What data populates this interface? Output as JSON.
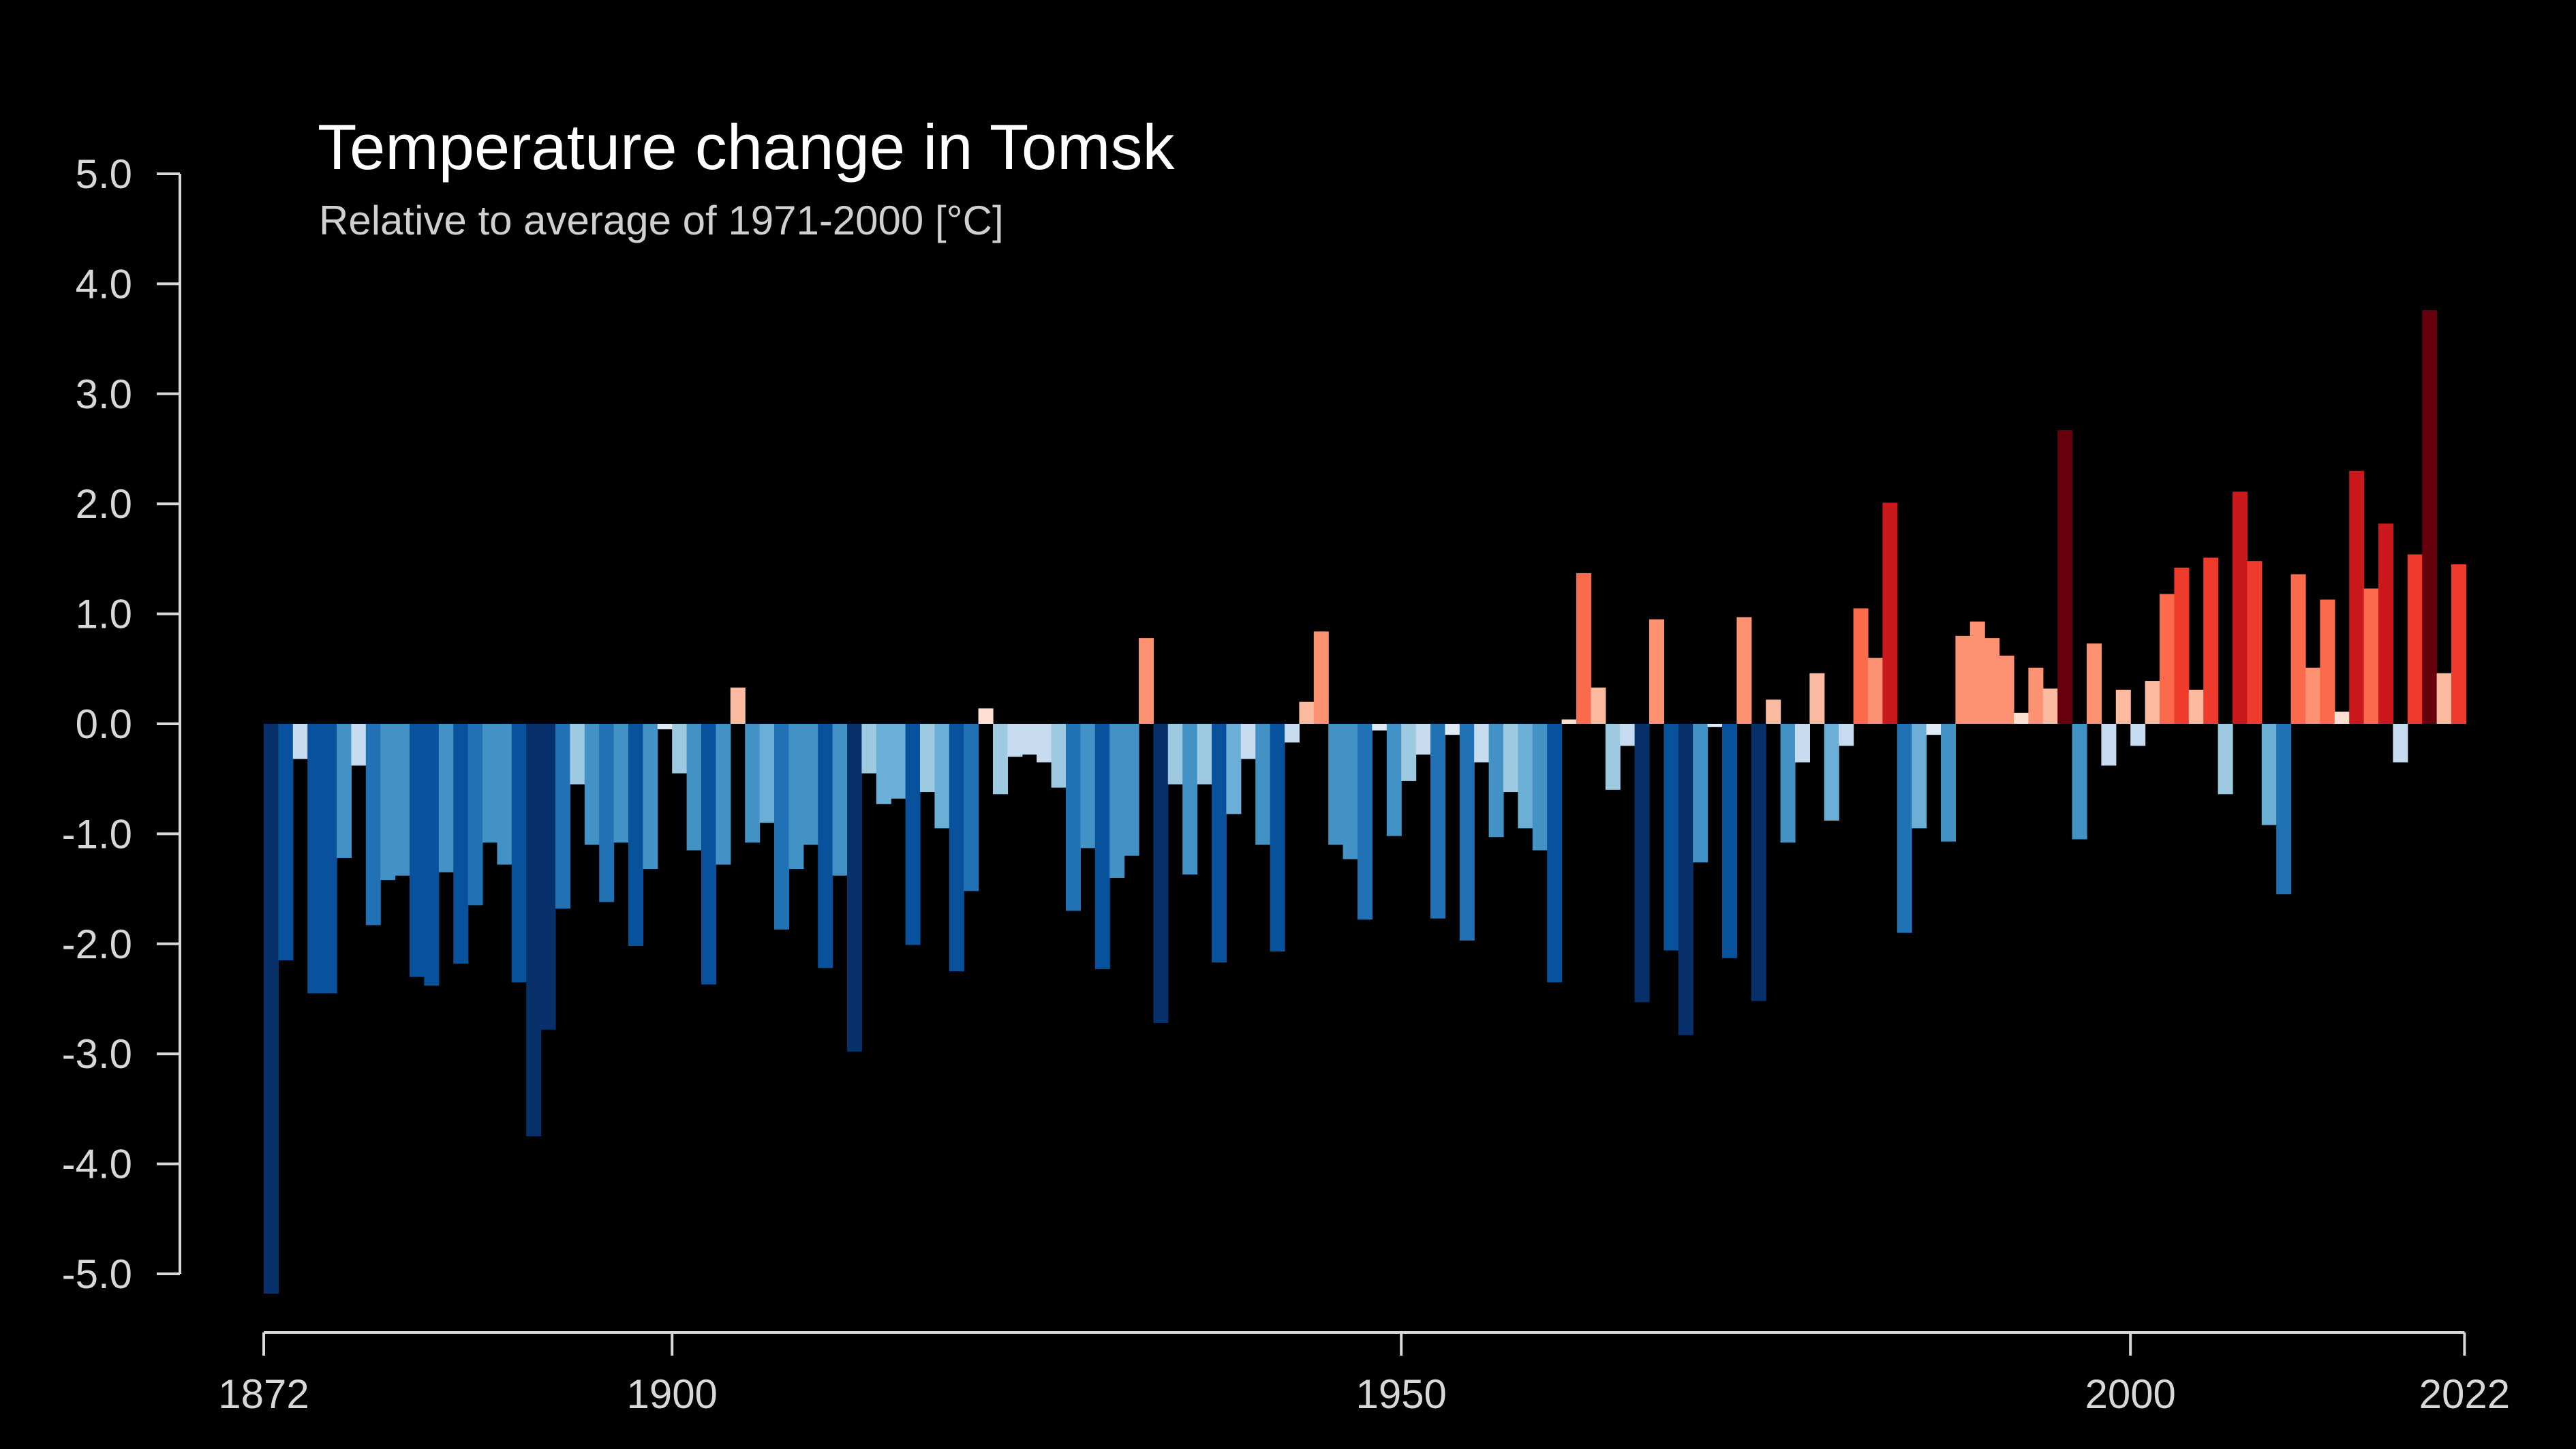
{
  "chart_data": {
    "type": "bar",
    "title": "Temperature change in Tomsk",
    "subtitle": "Relative to average of 1971-2000  [°C]",
    "xlabel": "",
    "ylabel": "",
    "ylim": [
      -5,
      5
    ],
    "xlim": [
      1872,
      2022
    ],
    "grid": false,
    "legend": "none",
    "y_ticks": [
      "5.0",
      "4.0",
      "3.0",
      "2.0",
      "1.0",
      "0.0",
      "-1.0",
      "-2.0",
      "-3.0",
      "-4.0",
      "-5.0"
    ],
    "y_tick_values": [
      5,
      4,
      3,
      2,
      1,
      0,
      -1,
      -2,
      -3,
      -4,
      -5
    ],
    "x_ticks": [
      "1872",
      "1900",
      "1950",
      "2000",
      "2022"
    ],
    "x_tick_values": [
      1872,
      1900,
      1950,
      2000,
      2022
    ],
    "start_year": 1872,
    "years": [
      1872,
      1873,
      1874,
      1875,
      1876,
      1877,
      1878,
      1879,
      1880,
      1881,
      1882,
      1883,
      1884,
      1885,
      1886,
      1887,
      1888,
      1889,
      1890,
      1891,
      1892,
      1893,
      1894,
      1895,
      1896,
      1897,
      1898,
      1899,
      1900,
      1901,
      1902,
      1903,
      1904,
      1905,
      1906,
      1907,
      1908,
      1909,
      1910,
      1911,
      1912,
      1913,
      1914,
      1915,
      1916,
      1917,
      1918,
      1919,
      1920,
      1921,
      1922,
      1923,
      1924,
      1925,
      1926,
      1927,
      1928,
      1929,
      1930,
      1931,
      1932,
      1933,
      1934,
      1935,
      1936,
      1937,
      1938,
      1939,
      1940,
      1941,
      1942,
      1943,
      1944,
      1945,
      1946,
      1947,
      1948,
      1949,
      1950,
      1951,
      1952,
      1953,
      1954,
      1955,
      1956,
      1957,
      1958,
      1959,
      1960,
      1961,
      1962,
      1963,
      1964,
      1965,
      1966,
      1967,
      1968,
      1969,
      1970,
      1971,
      1972,
      1973,
      1974,
      1975,
      1976,
      1977,
      1978,
      1979,
      1980,
      1981,
      1982,
      1983,
      1984,
      1985,
      1986,
      1987,
      1988,
      1989,
      1990,
      1991,
      1992,
      1993,
      1994,
      1995,
      1996,
      1997,
      1998,
      1999,
      2000,
      2001,
      2002,
      2003,
      2004,
      2005,
      2006,
      2007,
      2008,
      2009,
      2010,
      2011,
      2012,
      2013,
      2014,
      2015,
      2016,
      2017,
      2018,
      2019,
      2020,
      2021,
      2022
    ],
    "values": [
      -5.18,
      -2.15,
      -0.32,
      -2.45,
      -2.45,
      -1.22,
      -0.38,
      -1.83,
      -1.42,
      -1.38,
      -2.3,
      -2.38,
      -1.35,
      -2.18,
      -1.65,
      -1.08,
      -1.28,
      -2.35,
      -3.75,
      -2.78,
      -1.68,
      -0.55,
      -1.1,
      -1.62,
      -1.08,
      -2.02,
      -1.32,
      -0.05,
      -0.45,
      -1.15,
      -2.37,
      -1.28,
      0.33,
      -1.08,
      -0.9,
      -1.87,
      -1.32,
      -1.1,
      -2.22,
      -1.38,
      -2.98,
      -0.45,
      -0.73,
      -0.68,
      -2.01,
      -0.62,
      -0.95,
      -2.25,
      -1.52,
      0.14,
      -0.64,
      -0.3,
      -0.28,
      -0.35,
      -0.58,
      -1.7,
      -1.13,
      -2.23,
      -1.4,
      -1.2,
      0.78,
      -2.72,
      -0.55,
      -1.37,
      -0.55,
      -2.17,
      -0.82,
      -0.32,
      -1.1,
      -2.07,
      -0.17,
      0.2,
      0.84,
      -1.1,
      -1.23,
      -1.78,
      -0.06,
      -1.02,
      -0.52,
      -0.28,
      -1.77,
      -0.1,
      -1.97,
      -0.35,
      -1.03,
      -0.62,
      -0.95,
      -1.15,
      -2.35,
      0.04,
      1.37,
      0.33,
      -0.6,
      -0.2,
      -2.53,
      0.95,
      -2.06,
      -2.83,
      -1.26,
      -0.03,
      -2.13,
      0.97,
      -2.52,
      0.22,
      -1.08,
      -0.35,
      0.46,
      -0.88,
      -0.2,
      1.05,
      0.6,
      2.01,
      -1.9,
      -0.95,
      -0.1,
      -1.07,
      0.8,
      0.93,
      0.78,
      0.62,
      0.1,
      0.51,
      0.32,
      2.67,
      -1.05,
      0.73,
      -0.38,
      0.31,
      -0.2,
      0.39,
      1.18,
      1.42,
      0.31,
      1.51,
      -0.64,
      2.11,
      1.48,
      -0.92,
      -1.55,
      1.36,
      0.51,
      1.13,
      0.11,
      2.3,
      1.23,
      1.82,
      -0.35,
      1.54,
      3.76,
      0.46,
      1.45
    ]
  }
}
